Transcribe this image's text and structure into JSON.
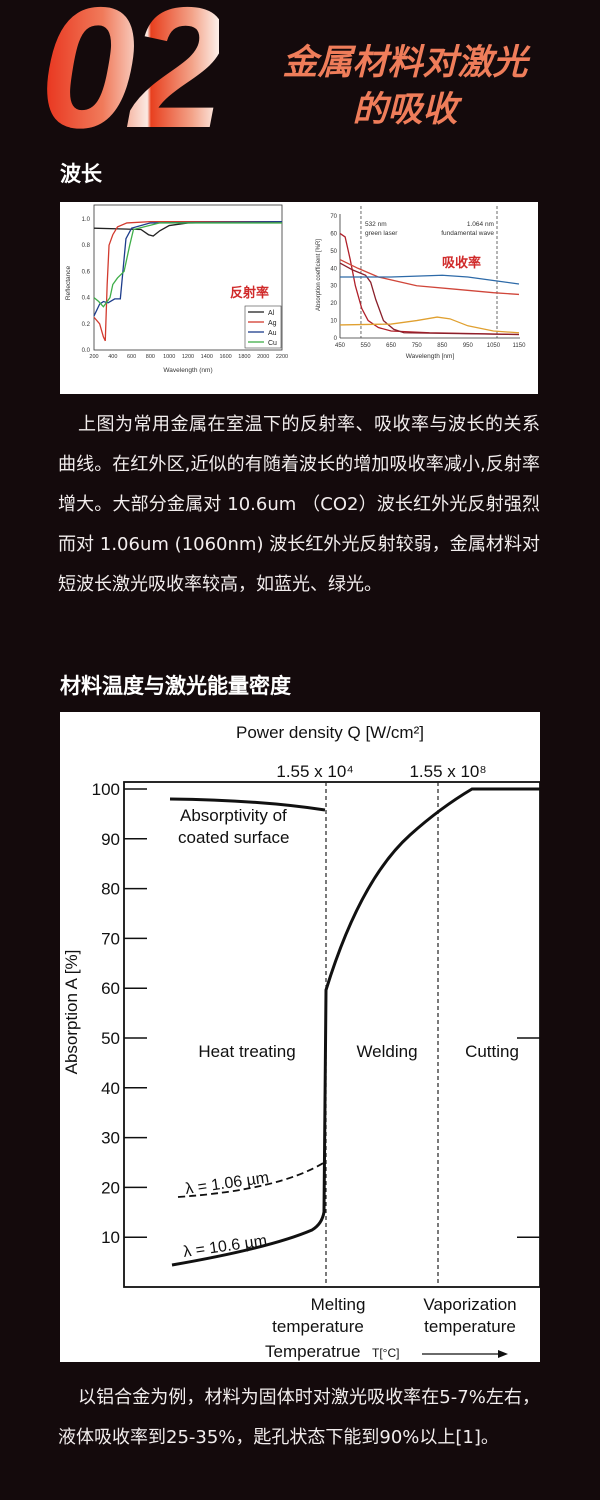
{
  "header": {
    "number": "02",
    "title_line1": "金属材料对激光",
    "title_line2": "的吸收"
  },
  "section1": {
    "heading": "波长"
  },
  "figure1": {
    "left": {
      "ylabel": "Reflectance",
      "xlabel": "Wavelength (nm)",
      "annotation": "反射率",
      "yticks": [
        "0.0",
        "0.2",
        "0.4",
        "0.6",
        "0.8",
        "1.0"
      ],
      "xticks": [
        "200",
        "400",
        "600",
        "800",
        "1000",
        "1200",
        "1400",
        "1600",
        "1800",
        "2000",
        "2200"
      ],
      "series": [
        {
          "name": "Al",
          "color": "#222222",
          "points": [
            [
              200,
              0.93
            ],
            [
              700,
              0.92
            ],
            [
              780,
              0.88
            ],
            [
              830,
              0.87
            ],
            [
              900,
              0.91
            ],
            [
              1000,
              0.95
            ],
            [
              1200,
              0.97
            ],
            [
              2200,
              0.98
            ]
          ]
        },
        {
          "name": "Ag",
          "color": "#d23a2e",
          "points": [
            [
              200,
              0.25
            ],
            [
              260,
              0.2
            ],
            [
              300,
              0.1
            ],
            [
              320,
              0.07
            ],
            [
              340,
              0.5
            ],
            [
              360,
              0.8
            ],
            [
              400,
              0.88
            ],
            [
              450,
              0.94
            ],
            [
              550,
              0.97
            ],
            [
              800,
              0.98
            ],
            [
              2200,
              0.98
            ]
          ]
        },
        {
          "name": "Au",
          "color": "#1d3d8c",
          "points": [
            [
              200,
              0.26
            ],
            [
              260,
              0.35
            ],
            [
              300,
              0.37
            ],
            [
              350,
              0.36
            ],
            [
              420,
              0.39
            ],
            [
              480,
              0.39
            ],
            [
              540,
              0.85
            ],
            [
              600,
              0.93
            ],
            [
              800,
              0.97
            ],
            [
              2200,
              0.98
            ]
          ]
        },
        {
          "name": "Cu",
          "color": "#3fae49",
          "points": [
            [
              200,
              0.4
            ],
            [
              250,
              0.37
            ],
            [
              300,
              0.33
            ],
            [
              370,
              0.4
            ],
            [
              400,
              0.5
            ],
            [
              450,
              0.55
            ],
            [
              520,
              0.6
            ],
            [
              580,
              0.8
            ],
            [
              620,
              0.92
            ],
            [
              900,
              0.97
            ],
            [
              2200,
              0.97
            ]
          ]
        }
      ]
    },
    "right": {
      "ylabel": "Absorption coefficient [%R]",
      "xlabel": "Wavelength [nm]",
      "annotation": "吸收率",
      "yticks": [
        "0",
        "10",
        "20",
        "30",
        "40",
        "50",
        "60",
        "70"
      ],
      "xticks": [
        "450",
        "550",
        "650",
        "750",
        "850",
        "950",
        "1050",
        "1150"
      ],
      "markers": [
        {
          "x": 532,
          "line1": "532 nm",
          "line2": "green laser"
        },
        {
          "x": 1064,
          "line1": "1.064 nm",
          "line2": "fundamental wave"
        }
      ],
      "series": [
        {
          "color": "#b0202a",
          "points": [
            [
              450,
              60
            ],
            [
              470,
              58
            ],
            [
              490,
              45
            ],
            [
              510,
              30
            ],
            [
              535,
              17
            ],
            [
              560,
              10
            ],
            [
              600,
              6
            ],
            [
              650,
              4
            ],
            [
              800,
              3
            ],
            [
              1150,
              2
            ]
          ]
        },
        {
          "color": "#8a1f2a",
          "points": [
            [
              450,
              43
            ],
            [
              500,
              39
            ],
            [
              550,
              36
            ],
            [
              570,
              32
            ],
            [
              590,
              22
            ],
            [
              620,
              10
            ],
            [
              660,
              5
            ],
            [
              700,
              3
            ],
            [
              1150,
              2
            ]
          ]
        },
        {
          "color": "#d0463a",
          "points": [
            [
              450,
              45
            ],
            [
              520,
              40
            ],
            [
              600,
              35
            ],
            [
              750,
              30
            ],
            [
              900,
              28
            ],
            [
              1050,
              26
            ],
            [
              1150,
              25
            ]
          ]
        },
        {
          "color": "#2d6aa8",
          "points": [
            [
              450,
              35
            ],
            [
              650,
              35
            ],
            [
              850,
              36
            ],
            [
              950,
              35
            ],
            [
              1050,
              33
            ],
            [
              1150,
              31
            ]
          ]
        },
        {
          "color": "#e0a030",
          "points": [
            [
              450,
              7.5
            ],
            [
              650,
              8
            ],
            [
              750,
              10
            ],
            [
              830,
              12
            ],
            [
              880,
              11
            ],
            [
              950,
              7
            ],
            [
              1050,
              4
            ],
            [
              1150,
              3
            ]
          ]
        }
      ]
    }
  },
  "paragraph1": "上图为常用金属在室温下的反射率、吸收率与波长的关系曲线。在红外区,近似的有随着波长的增加吸收率减小,反射率增大。大部分金属对 10.6um （CO2）波长红外光反射强烈而对 1.06um (1060nm) 波长红外光反射较弱，金属材料对短波长激光吸收率较高，如蓝光、绿光。",
  "section2": {
    "heading": "材料温度与激光能量密度"
  },
  "figure2": {
    "top_title": "Power density Q [W/cm²]",
    "density_left": "1.55 x 10⁴",
    "density_right": "1.55 x 10⁸",
    "ylabel": "Absorption A [%]",
    "yticks": [
      "100",
      "90",
      "80",
      "70",
      "60",
      "50",
      "40",
      "30",
      "20",
      "10"
    ],
    "coated_label_1": "Absorptivity of",
    "coated_label_2": "coated surface",
    "regions": [
      "Heat treating",
      "Welding",
      "Cutting"
    ],
    "curve_labels": [
      "λ = 1.06 µm",
      "λ = 10.6 µm"
    ],
    "melting_1": "Melting",
    "melting_2": "temperature",
    "vapor_1": "Vaporization",
    "vapor_2": "temperature",
    "xlabel": "Temperatrue",
    "xunit": "T[°C]"
  },
  "paragraph2": "以铝合金为例，材料为固体时对激光吸收率在5-7%左右，液体吸收率到25-35%，匙孔状态下能到90%以上[1]。"
}
